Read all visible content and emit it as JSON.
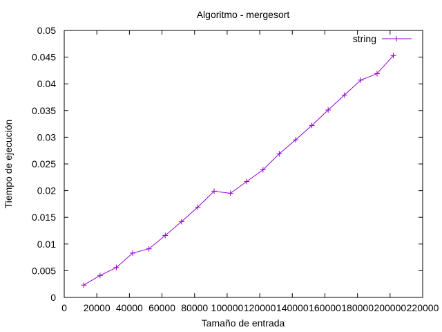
{
  "chart_data": {
    "type": "line",
    "title": "Algoritmo - mergesort",
    "xlabel": "Tamaño de entrada",
    "ylabel": "Tiempo de ejecución",
    "xlim": [
      0,
      220000
    ],
    "ylim": [
      0,
      0.05
    ],
    "x_ticks": [
      "0",
      "20000",
      "40000",
      "60000",
      "80000",
      "100000",
      "120000",
      "140000",
      "160000",
      "180000",
      "200000",
      "220000"
    ],
    "y_ticks": [
      "0",
      "0.005",
      "0.01",
      "0.015",
      "0.02",
      "0.025",
      "0.03",
      "0.035",
      "0.04",
      "0.045",
      "0.05"
    ],
    "grid": false,
    "legend_position": "top-right",
    "series": [
      {
        "name": "string",
        "color": "#9400d3",
        "marker": "plus",
        "x": [
          12000,
          22000,
          32000,
          42000,
          52000,
          62000,
          72000,
          82000,
          92000,
          102000,
          112000,
          122000,
          132000,
          142000,
          152000,
          162000,
          172000,
          182000,
          192000,
          202000
        ],
        "y": [
          0.0023,
          0.0041,
          0.0056,
          0.0083,
          0.0091,
          0.0116,
          0.0142,
          0.0169,
          0.0199,
          0.0195,
          0.0217,
          0.0239,
          0.0269,
          0.0295,
          0.0322,
          0.0351,
          0.0379,
          0.0407,
          0.0419,
          0.0453
        ]
      }
    ]
  }
}
